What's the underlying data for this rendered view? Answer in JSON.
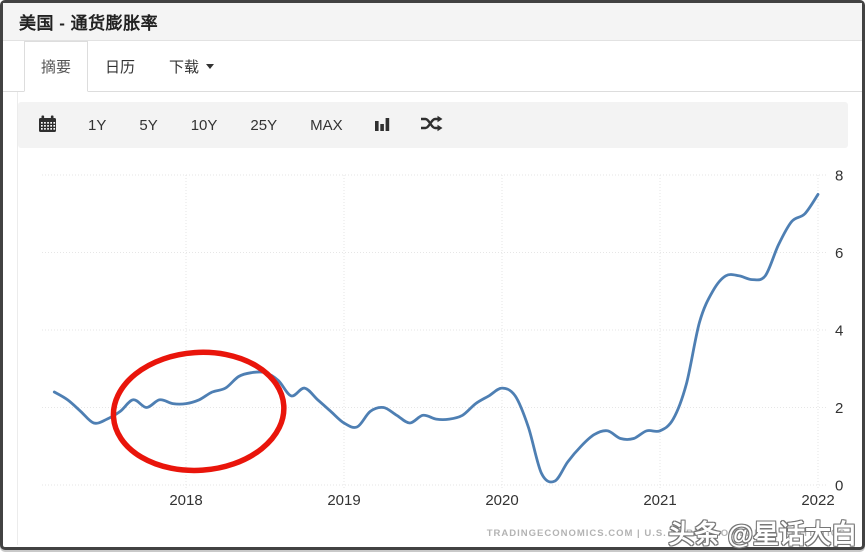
{
  "window": {
    "title": "美国 - 通货膨胀率"
  },
  "tabs": [
    {
      "label": "摘要",
      "active": true
    },
    {
      "label": "日历",
      "active": false
    },
    {
      "label": "下载",
      "active": false,
      "has_caret": true
    }
  ],
  "toolbar": {
    "icons": [
      "calendar-icon",
      "bar-chart-icon",
      "shuffle-icon"
    ],
    "range_buttons": [
      "1Y",
      "5Y",
      "10Y",
      "25Y",
      "MAX"
    ]
  },
  "colors": {
    "line": "#4e7fb3",
    "annotation": "#e9150b",
    "grid": "#e6e6e6",
    "axis_text": "#333333",
    "frame": "#424242",
    "panel_bg": "#f4f4f4"
  },
  "chart_data": {
    "type": "line",
    "frequency": "monthly",
    "start": "2017-03",
    "end": "2022-01",
    "values": [
      2.4,
      2.2,
      1.9,
      1.6,
      1.7,
      1.9,
      2.2,
      2.0,
      2.2,
      2.1,
      2.1,
      2.2,
      2.4,
      2.5,
      2.8,
      2.9,
      2.9,
      2.7,
      2.3,
      2.5,
      2.2,
      1.9,
      1.6,
      1.5,
      1.9,
      2.0,
      1.8,
      1.6,
      1.8,
      1.7,
      1.7,
      1.8,
      2.1,
      2.3,
      2.5,
      2.3,
      1.5,
      0.3,
      0.1,
      0.6,
      1.0,
      1.3,
      1.4,
      1.2,
      1.2,
      1.4,
      1.4,
      1.7,
      2.6,
      4.2,
      5.0,
      5.4,
      5.4,
      5.3,
      5.4,
      6.2,
      6.8,
      7.0,
      7.5
    ],
    "x_ticks": [
      2018,
      2019,
      2020,
      2021,
      2022
    ],
    "y_ticks": [
      0,
      2,
      4,
      6,
      8
    ],
    "ylim": [
      0,
      8
    ],
    "grid": "dotted",
    "axis_side": "right",
    "legend": "none",
    "annotation_ellipse": {
      "cx_year": 2018.08,
      "cy_value": 1.9,
      "rx_years": 0.54,
      "ry_units": 1.52,
      "rotation_deg": -4
    }
  },
  "footer": {
    "attribution": "TRADINGECONOMICS.COM  |  U.S. BUREAU OF LABOR STATISTICS",
    "watermark": "头条 @星话大白"
  }
}
